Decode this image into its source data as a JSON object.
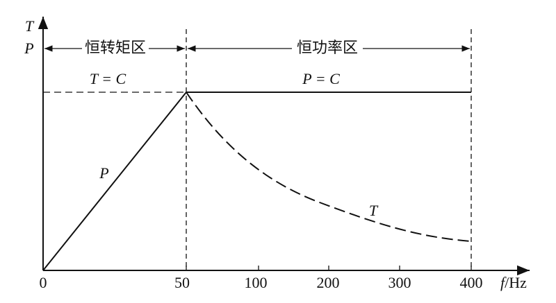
{
  "axes": {
    "y_label_top": "T",
    "y_label_bottom": "P",
    "x_label_var": "f",
    "x_label_unit": "/Hz",
    "x_tick_labels": [
      "0",
      "50",
      "100",
      "200",
      "300",
      "400"
    ]
  },
  "regions": [
    {
      "label": "恒转矩区"
    },
    {
      "label": "恒功率区"
    }
  ],
  "annotations": {
    "constant_torque": "T = C",
    "constant_power": "P = C",
    "power_curve": "P",
    "torque_curve": "T"
  }
}
